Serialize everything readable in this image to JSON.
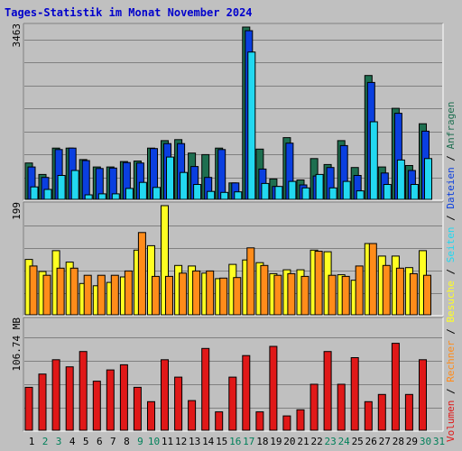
{
  "chart_data": {
    "type": "bar",
    "title": "Tages-Statistik im Monat November 2024",
    "categories": [
      "1",
      "2",
      "3",
      "4",
      "5",
      "6",
      "7",
      "8",
      "9",
      "10",
      "11",
      "12",
      "13",
      "14",
      "15",
      "16",
      "17",
      "18",
      "19",
      "20",
      "21",
      "22",
      "23",
      "24",
      "25",
      "26",
      "27",
      "28",
      "29",
      "30",
      "31"
    ],
    "weekend_days": [
      "2",
      "3",
      "9",
      "10",
      "16",
      "17",
      "23",
      "24",
      "30",
      "31"
    ],
    "colors": {
      "background": "#c0c0c0",
      "title": "#0000cc",
      "weekday_label": "#000000",
      "weekend_label": "#00805a",
      "anfragen": "#1e6f50",
      "dateien": "#0a3fe0",
      "seiten": "#22d8f0",
      "besuche": "#ffff22",
      "rechner": "#ff8c1a",
      "volumen": "#e01818"
    },
    "panels": [
      {
        "name": "hits",
        "ymax_label": "3463",
        "ymax": 3463,
        "series": [
          {
            "name": "Anfragen",
            "values": [
              730,
              500,
              1030,
              1030,
              800,
              650,
              650,
              760,
              770,
              1030,
              1180,
              1200,
              930,
              900,
              1030,
              330,
              3463,
              1010,
              410,
              1240,
              390,
              820,
              700,
              1180,
              640,
              2490,
              650,
              1830,
              680,
              1520,
              0
            ]
          },
          {
            "name": "Dateien",
            "values": [
              650,
              440,
              1000,
              1030,
              780,
              620,
              630,
              740,
              730,
              1020,
              1120,
              1120,
              660,
              440,
              1000,
              330,
              3390,
              610,
              260,
              1130,
              290,
              470,
              640,
              1080,
              480,
              2350,
              530,
              1730,
              580,
              1370,
              0
            ]
          },
          {
            "name": "Seiten",
            "values": [
              250,
              200,
              480,
              580,
              90,
              110,
              110,
              220,
              340,
              240,
              850,
              540,
              300,
              160,
              140,
              150,
              2960,
              320,
              260,
              360,
              230,
              500,
              230,
              360,
              170,
              1560,
              300,
              790,
              300,
              820,
              0
            ]
          }
        ]
      },
      {
        "name": "visits",
        "ymax_label": "199",
        "ymax": 199,
        "series": [
          {
            "name": "Besuche",
            "values": [
              101,
              79,
              117,
              96,
              57,
              53,
              59,
              69,
              118,
              126,
              199,
              90,
              89,
              76,
              66,
              92,
              100,
              95,
              75,
              82,
              82,
              118,
              115,
              73,
              63,
              130,
              107,
              107,
              86,
              117,
              0
            ]
          },
          {
            "name": "Rechner",
            "values": [
              89,
              72,
              85,
              85,
              72,
              72,
              72,
              80,
              150,
              70,
              70,
              76,
              80,
              80,
              67,
              68,
              122,
              90,
              72,
              75,
              70,
              116,
              72,
              70,
              89,
              130,
              90,
              85,
              75,
              72,
              0
            ]
          }
        ]
      },
      {
        "name": "volume",
        "ymax_label": "106.74 MB",
        "ymax": 106.74,
        "series": [
          {
            "name": "Volumen",
            "values": [
              42,
              55,
              69,
              62,
              77,
              48,
              59,
              64,
              42,
              28,
              69,
              52,
              29,
              80,
              18,
              52,
              73,
              18,
              82,
              14,
              20,
              45,
              77,
              45,
              71,
              28,
              35,
              85,
              35,
              69,
              0
            ]
          }
        ]
      }
    ],
    "side_legend": [
      "Volumen",
      "Rechner",
      "Besuche",
      "Seiten",
      "Dateien",
      "Anfragen"
    ],
    "side_legend_separator": " / "
  }
}
